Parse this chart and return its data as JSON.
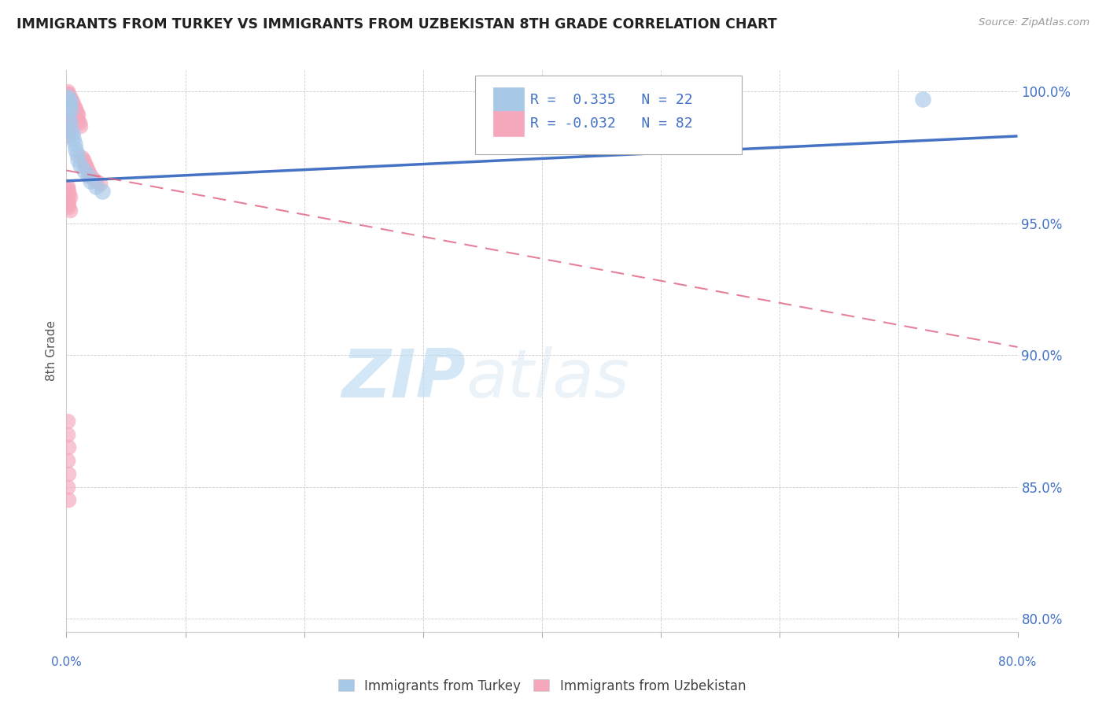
{
  "title": "IMMIGRANTS FROM TURKEY VS IMMIGRANTS FROM UZBEKISTAN 8TH GRADE CORRELATION CHART",
  "source": "Source: ZipAtlas.com",
  "ylabel": "8th Grade",
  "x_min": 0.0,
  "x_max": 0.8,
  "y_min": 0.795,
  "y_max": 1.008,
  "yticks": [
    0.8,
    0.85,
    0.9,
    0.95,
    1.0
  ],
  "ytick_labels": [
    "80.0%",
    "85.0%",
    "90.0%",
    "95.0%",
    "100.0%"
  ],
  "turkey_color": "#a8c8e8",
  "uzbekistan_color": "#f5a8bc",
  "turkey_R": 0.335,
  "turkey_N": 22,
  "uzbekistan_R": -0.032,
  "uzbekistan_N": 82,
  "turkey_line_x0": 0.0,
  "turkey_line_y0": 0.966,
  "turkey_line_x1": 0.8,
  "turkey_line_y1": 0.983,
  "uzbek_line_x0": 0.0,
  "uzbek_line_y0": 0.97,
  "uzbek_line_x1": 0.8,
  "uzbek_line_y1": 0.903,
  "turkey_scatter": [
    [
      0.001,
      0.998
    ],
    [
      0.001,
      0.995
    ],
    [
      0.002,
      0.997
    ],
    [
      0.002,
      0.994
    ],
    [
      0.002,
      0.99
    ],
    [
      0.003,
      0.996
    ],
    [
      0.003,
      0.988
    ],
    [
      0.004,
      0.985
    ],
    [
      0.004,
      0.993
    ],
    [
      0.005,
      0.984
    ],
    [
      0.006,
      0.982
    ],
    [
      0.007,
      0.98
    ],
    [
      0.008,
      0.978
    ],
    [
      0.009,
      0.976
    ],
    [
      0.01,
      0.974
    ],
    [
      0.012,
      0.972
    ],
    [
      0.015,
      0.97
    ],
    [
      0.018,
      0.968
    ],
    [
      0.02,
      0.966
    ],
    [
      0.025,
      0.964
    ],
    [
      0.03,
      0.962
    ],
    [
      0.72,
      0.997
    ]
  ],
  "uzbekistan_scatter": [
    [
      0.001,
      1.0
    ],
    [
      0.001,
      0.999
    ],
    [
      0.001,
      0.998
    ],
    [
      0.001,
      0.997
    ],
    [
      0.001,
      0.996
    ],
    [
      0.001,
      0.995
    ],
    [
      0.001,
      0.994
    ],
    [
      0.001,
      0.993
    ],
    [
      0.001,
      0.992
    ],
    [
      0.001,
      0.991
    ],
    [
      0.001,
      0.99
    ],
    [
      0.001,
      0.989
    ],
    [
      0.001,
      0.988
    ],
    [
      0.001,
      0.987
    ],
    [
      0.001,
      0.986
    ],
    [
      0.001,
      0.985
    ],
    [
      0.001,
      0.984
    ],
    [
      0.002,
      0.999
    ],
    [
      0.002,
      0.997
    ],
    [
      0.002,
      0.995
    ],
    [
      0.002,
      0.993
    ],
    [
      0.002,
      0.991
    ],
    [
      0.002,
      0.989
    ],
    [
      0.002,
      0.987
    ],
    [
      0.002,
      0.985
    ],
    [
      0.002,
      0.983
    ],
    [
      0.003,
      0.998
    ],
    [
      0.003,
      0.996
    ],
    [
      0.003,
      0.994
    ],
    [
      0.003,
      0.992
    ],
    [
      0.003,
      0.99
    ],
    [
      0.003,
      0.988
    ],
    [
      0.003,
      0.986
    ],
    [
      0.004,
      0.997
    ],
    [
      0.004,
      0.995
    ],
    [
      0.004,
      0.993
    ],
    [
      0.004,
      0.991
    ],
    [
      0.004,
      0.989
    ],
    [
      0.005,
      0.996
    ],
    [
      0.005,
      0.994
    ],
    [
      0.005,
      0.992
    ],
    [
      0.005,
      0.99
    ],
    [
      0.006,
      0.995
    ],
    [
      0.006,
      0.993
    ],
    [
      0.006,
      0.991
    ],
    [
      0.007,
      0.994
    ],
    [
      0.007,
      0.992
    ],
    [
      0.008,
      0.993
    ],
    [
      0.008,
      0.991
    ],
    [
      0.009,
      0.992
    ],
    [
      0.01,
      0.991
    ],
    [
      0.01,
      0.989
    ],
    [
      0.011,
      0.988
    ],
    [
      0.012,
      0.987
    ],
    [
      0.013,
      0.975
    ],
    [
      0.014,
      0.974
    ],
    [
      0.015,
      0.973
    ],
    [
      0.016,
      0.972
    ],
    [
      0.017,
      0.971
    ],
    [
      0.018,
      0.97
    ],
    [
      0.019,
      0.969
    ],
    [
      0.02,
      0.968
    ],
    [
      0.022,
      0.967
    ],
    [
      0.025,
      0.966
    ],
    [
      0.028,
      0.965
    ],
    [
      0.001,
      0.964
    ],
    [
      0.001,
      0.963
    ],
    [
      0.002,
      0.962
    ],
    [
      0.002,
      0.961
    ],
    [
      0.003,
      0.96
    ],
    [
      0.001,
      0.959
    ],
    [
      0.002,
      0.958
    ],
    [
      0.001,
      0.957
    ],
    [
      0.002,
      0.956
    ],
    [
      0.003,
      0.955
    ],
    [
      0.001,
      0.875
    ],
    [
      0.001,
      0.87
    ],
    [
      0.002,
      0.865
    ],
    [
      0.001,
      0.86
    ],
    [
      0.002,
      0.855
    ],
    [
      0.001,
      0.85
    ],
    [
      0.002,
      0.845
    ]
  ],
  "watermark_zip": "ZIP",
  "watermark_atlas": "atlas",
  "background_color": "#ffffff",
  "grid_color": "#cccccc"
}
